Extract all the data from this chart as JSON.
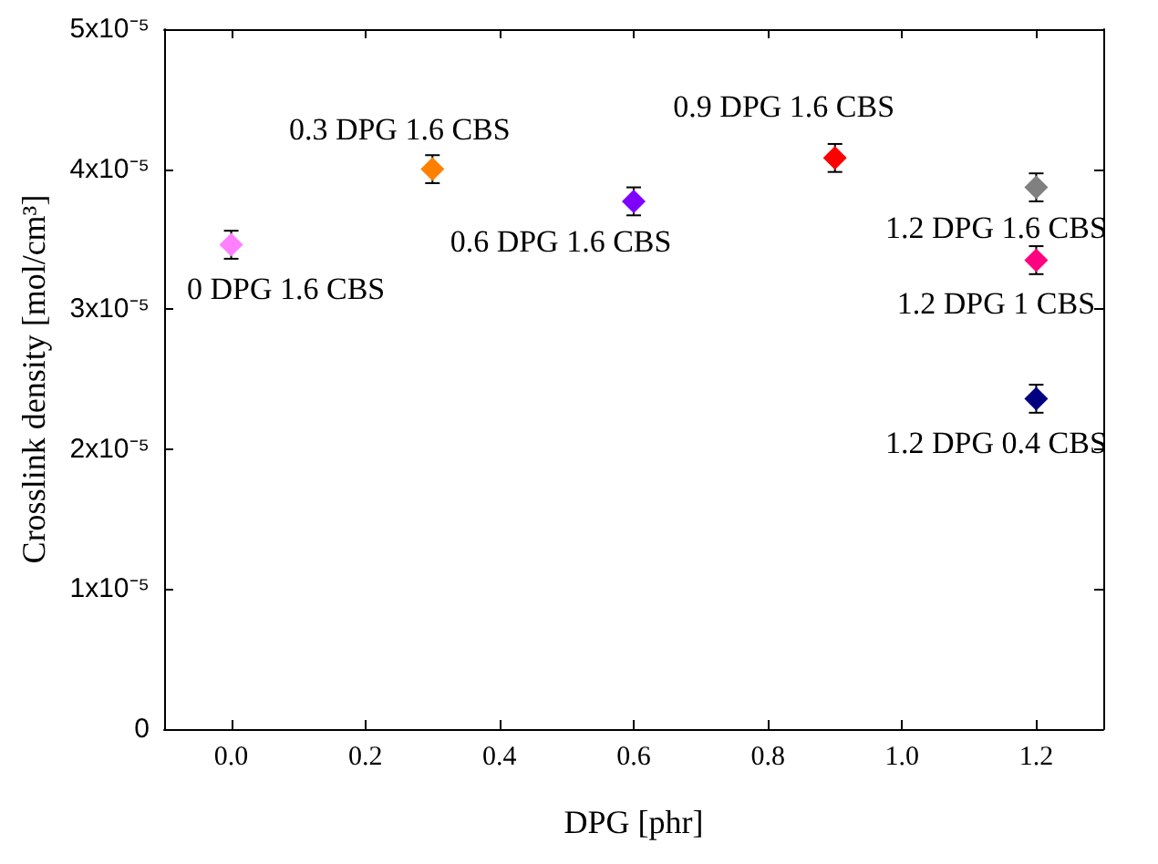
{
  "chart_data": {
    "type": "scatter",
    "xlabel": "DPG [phr]",
    "ylabel": "Crosslink density [mol/cm³]",
    "marker": "diamond",
    "legend": false,
    "grid": false,
    "xlim": [
      -0.1,
      1.3
    ],
    "xticks": [
      {
        "value": 0,
        "label": "0.0"
      },
      {
        "value": 0.2,
        "label": "0.2"
      },
      {
        "value": 0.4,
        "label": "0.4"
      },
      {
        "value": 0.6,
        "label": "0.6"
      },
      {
        "value": 0.8,
        "label": "0.8"
      },
      {
        "value": 1.0,
        "label": "1.0"
      },
      {
        "value": 1.2,
        "label": "1.2"
      }
    ],
    "ylim": [
      0,
      5e-05
    ],
    "yticks": [
      0,
      {
        "value": 1e-05,
        "label": "1x10⁻⁵"
      },
      {
        "value": 2e-05,
        "label": "2x10⁻⁵"
      },
      {
        "value": 3e-05,
        "label": "3x10⁻⁵"
      },
      {
        "value": 4e-05,
        "label": "4x10⁻⁵"
      },
      {
        "value": 5e-05,
        "label": "5x10⁻⁵"
      }
    ],
    "series": [
      {
        "name": "0 DPG 1.6 CBS",
        "color": "#ff80ff",
        "x": [
          0
        ],
        "values": [
          3.46e-05
        ],
        "errors": [
          1e-06
        ]
      },
      {
        "name": "0.3 DPG 1.6 CBS",
        "color": "#ff8000",
        "x": [
          0.3
        ],
        "values": [
          4e-05
        ],
        "errors": [
          1e-06
        ]
      },
      {
        "name": "0.6 DPG 1.6 CBS",
        "color": "#8000ff",
        "x": [
          0.6
        ],
        "values": [
          3.77e-05
        ],
        "errors": [
          1e-06
        ]
      },
      {
        "name": "0.9 DPG 1.6 CBS",
        "color": "#ff0000",
        "x": [
          0.9
        ],
        "values": [
          4.08e-05
        ],
        "errors": [
          1e-06
        ]
      },
      {
        "name": "1.2 DPG 1.6 CBS",
        "color": "#808080",
        "x": [
          1.2
        ],
        "values": [
          3.87e-05
        ],
        "errors": [
          1e-06
        ]
      },
      {
        "name": "1.2 DPG 1 CBS",
        "color": "#ff0080",
        "x": [
          1.2
        ],
        "values": [
          3.35e-05
        ],
        "errors": [
          1e-06
        ]
      },
      {
        "name": "1.2 DPG 0.4 CBS",
        "color": "#000080",
        "x": [
          1.2
        ],
        "values": [
          2.36e-05
        ],
        "errors": [
          1e-06
        ]
      }
    ]
  }
}
